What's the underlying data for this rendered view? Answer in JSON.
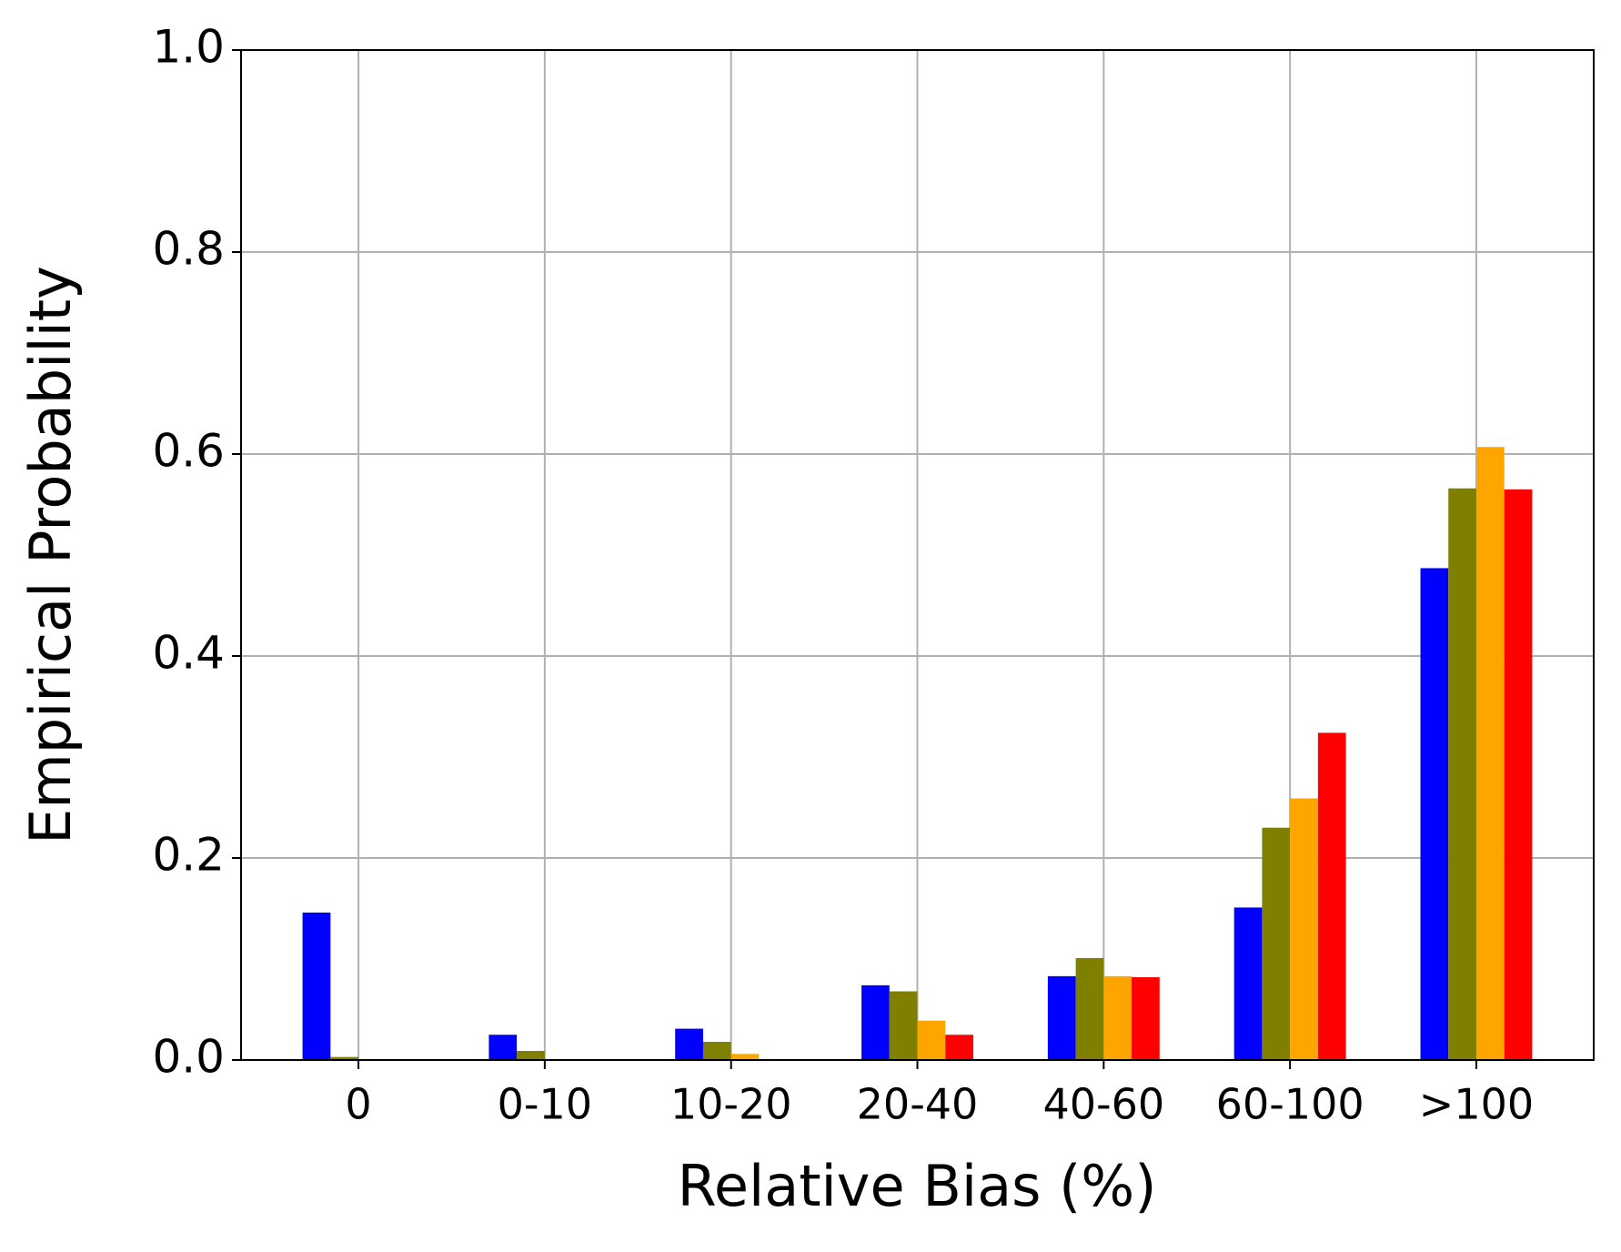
{
  "chart_data": {
    "type": "bar",
    "x_label": "Relative Bias (%)",
    "y_label": "Empirical Probability",
    "categories": [
      "0",
      "0-10",
      "10-20",
      "20-40",
      "40-60",
      "60-100",
      ">100"
    ],
    "series": [
      {
        "color": "#0000ff",
        "values": [
          0.146,
          0.025,
          0.031,
          0.074,
          0.083,
          0.151,
          0.487
        ]
      },
      {
        "color": "#808000",
        "values": [
          0.003,
          0.009,
          0.018,
          0.068,
          0.101,
          0.23,
          0.566
        ]
      },
      {
        "color": "#ffa500",
        "values": [
          0,
          0,
          0.006,
          0.039,
          0.083,
          0.259,
          0.607
        ]
      },
      {
        "color": "#ff0000",
        "values": [
          0,
          0,
          0,
          0.025,
          0.082,
          0.324,
          0.565
        ]
      }
    ],
    "ylim": [
      0,
      1
    ],
    "yticks": [
      {
        "value": 0,
        "label": "0.0"
      },
      {
        "value": 0.2,
        "label": "0.2"
      },
      {
        "value": 0.4,
        "label": "0.4"
      },
      {
        "value": 0.6,
        "label": "0.6"
      },
      {
        "value": 0.8,
        "label": "0.8"
      },
      {
        "value": 1,
        "label": "1.0"
      }
    ],
    "grid": true
  }
}
